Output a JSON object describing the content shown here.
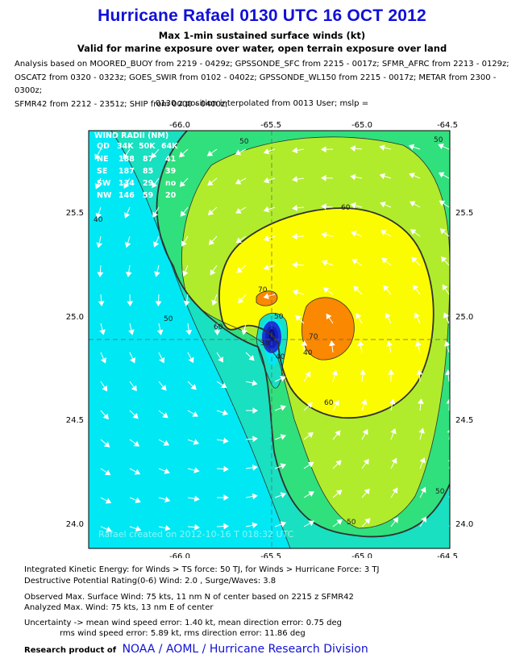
{
  "header": {
    "title": "Hurricane Rafael 0130 UTC 16 OCT 2012",
    "subtitle1": "Max 1-min sustained surface winds (kt)",
    "subtitle2": "Valid for marine exposure over water, open terrain exposure over land",
    "analysis_lines": [
      "Analysis based on MOORED_BUOY from 2219 - 0429z; GPSSONDE_SFC from 2215 - 0017z; SFMR_AFRC from 2213 - 0129z;",
      "OSCAT2 from 0320 - 0323z; GOES_SWIR from 0102 - 0402z; GPSSONDE_WL150 from 2215 - 0017z; METAR from 2300 - 0300z;",
      "SFMR42 from 2212 - 2351z; SHIP from 0000 - 0400z;"
    ],
    "position_note": "0130 z position interpolated from 0013 User; mslp ="
  },
  "map": {
    "lon_labels": [
      "-66.0",
      "-65.5",
      "-65.0",
      "-64.5"
    ],
    "lat_labels": [
      "25.5",
      "25.0",
      "24.5",
      "24.0"
    ],
    "contour_labels": [
      "50",
      "40",
      "50",
      "60",
      "60",
      "70",
      "50",
      "50",
      "60",
      "50",
      "70",
      "40",
      "30",
      "50",
      "40"
    ],
    "watermark": "Rafael  created on 2012-10-16 T 018:32 UTC",
    "wind_radii": {
      "title": "WIND RADII (NM)",
      "header": [
        "QD",
        "34K",
        "50K",
        "64K"
      ],
      "rows": [
        [
          "NE",
          "188",
          "87",
          "41"
        ],
        [
          "SE",
          "187",
          "85",
          "39"
        ],
        [
          "SW",
          "134",
          "29",
          "no"
        ],
        [
          "NW",
          "146",
          "59",
          "20"
        ]
      ]
    },
    "colors": {
      "band_lt30": "#00e8f4",
      "band_30_40": "#18e0c0",
      "band_40_50": "#30e07c",
      "band_50_60": "#b0ec2c",
      "band_60_70": "#fcfc00",
      "band_gt70": "#fa8800",
      "center_low": "#1020c0"
    }
  },
  "footer": {
    "ike": "Integrated Kinetic Energy: for Winds > TS force: 50 TJ, for Winds > Hurricane Force: 3 TJ",
    "dp": "Destructive Potential Rating(0-6)  Wind: 2.0 , Surge/Waves: 3.8",
    "obs": "Observed Max. Surface Wind: 75 kts, 11 nm N of center based on 2215 z SFMR42",
    "analyzed": "Analyzed Max. Wind: 75 kts, 13 nm  E of center",
    "unc1": "Uncertainty -> mean wind speed error: 1.40 kt, mean direction error: 0.75 deg",
    "unc2": "rms wind speed error: 5.89 kt, rms direction error: 11.86 deg",
    "research_label": "Research product of",
    "org": "NOAA  /  AOML  /  Hurricane Research Division"
  }
}
